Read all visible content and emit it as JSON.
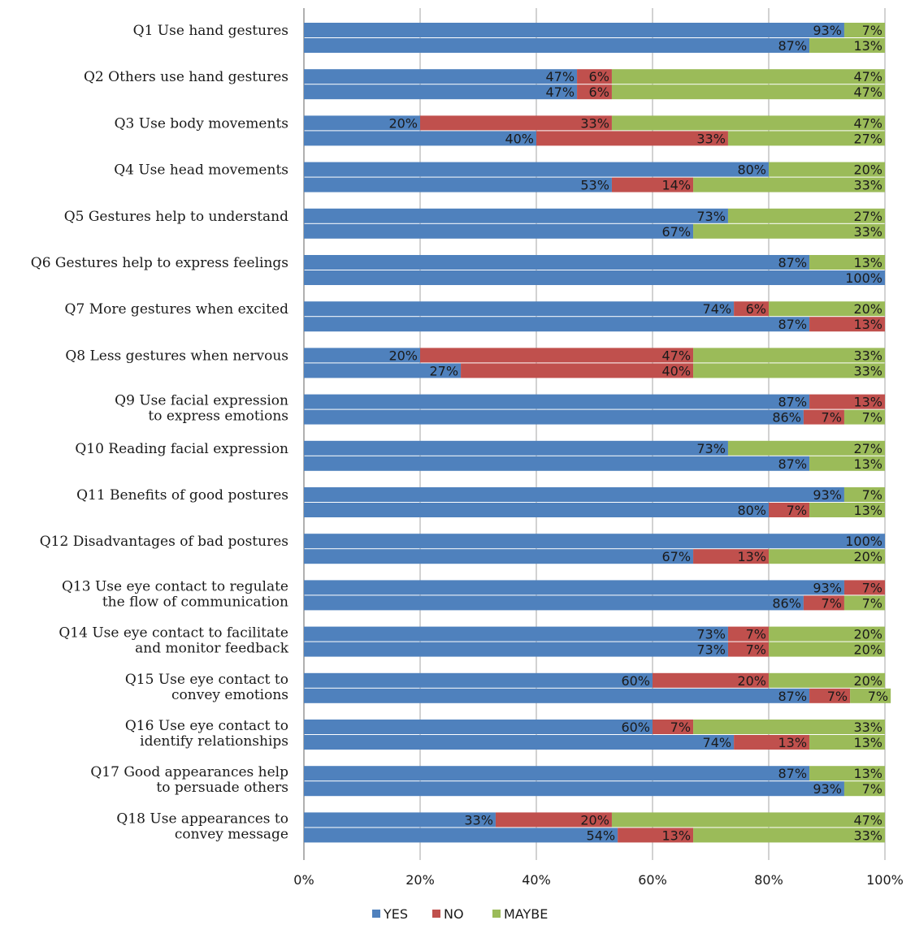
{
  "chart_data": {
    "type": "bar",
    "orientation": "horizontal",
    "stacked": true,
    "percent_stacked": true,
    "xlim": [
      0,
      100
    ],
    "x_ticks": [
      "0%",
      "20%",
      "40%",
      "60%",
      "80%",
      "100%"
    ],
    "grid": true,
    "legend_position": "bottom",
    "series": [
      {
        "name": "YES",
        "color": "#4f81bd"
      },
      {
        "name": "NO",
        "color": "#c0504d"
      },
      {
        "name": "MAYBE",
        "color": "#9bbb59"
      }
    ],
    "categories": [
      {
        "label": [
          "Q1 Use hand gestures"
        ],
        "bars": [
          [
            93,
            0,
            7
          ],
          [
            87,
            0,
            13
          ]
        ]
      },
      {
        "label": [
          "Q2 Others use hand gestures"
        ],
        "bars": [
          [
            47,
            6,
            47
          ],
          [
            47,
            6,
            47
          ]
        ]
      },
      {
        "label": [
          "Q3 Use body movements"
        ],
        "bars": [
          [
            20,
            33,
            47
          ],
          [
            40,
            33,
            27
          ]
        ]
      },
      {
        "label": [
          "Q4 Use head movements"
        ],
        "bars": [
          [
            80,
            0,
            20
          ],
          [
            53,
            14,
            33
          ]
        ]
      },
      {
        "label": [
          "Q5 Gestures help to understand"
        ],
        "bars": [
          [
            73,
            0,
            27
          ],
          [
            67,
            0,
            33
          ]
        ]
      },
      {
        "label": [
          "Q6 Gestures help to express feelings"
        ],
        "bars": [
          [
            87,
            0,
            13
          ],
          [
            100,
            0,
            0
          ]
        ]
      },
      {
        "label": [
          "Q7 More gestures when excited"
        ],
        "bars": [
          [
            74,
            6,
            20
          ],
          [
            87,
            13,
            0
          ]
        ]
      },
      {
        "label": [
          "Q8 Less gestures when nervous"
        ],
        "bars": [
          [
            20,
            47,
            33
          ],
          [
            27,
            40,
            33
          ]
        ]
      },
      {
        "label": [
          "Q9 Use facial expression",
          "to express emotions"
        ],
        "bars": [
          [
            87,
            13,
            0
          ],
          [
            86,
            7,
            7
          ]
        ]
      },
      {
        "label": [
          "Q10 Reading facial expression"
        ],
        "bars": [
          [
            73,
            0,
            27
          ],
          [
            87,
            0,
            13
          ]
        ]
      },
      {
        "label": [
          "Q11 Benefits of good postures"
        ],
        "bars": [
          [
            93,
            0,
            7
          ],
          [
            80,
            7,
            13
          ]
        ]
      },
      {
        "label": [
          "Q12 Disadvantages of bad postures"
        ],
        "bars": [
          [
            100,
            0,
            0
          ],
          [
            67,
            13,
            20
          ]
        ]
      },
      {
        "label": [
          "Q13 Use eye contact to regulate",
          "the flow of communication"
        ],
        "bars": [
          [
            93,
            7,
            0
          ],
          [
            86,
            7,
            7
          ]
        ]
      },
      {
        "label": [
          "Q14 Use eye contact to facilitate",
          "and monitor feedback"
        ],
        "bars": [
          [
            73,
            7,
            20
          ],
          [
            73,
            7,
            20
          ]
        ]
      },
      {
        "label": [
          "Q15 Use eye contact to",
          "convey emotions"
        ],
        "bars": [
          [
            60,
            20,
            20
          ],
          [
            87,
            7,
            7
          ]
        ]
      },
      {
        "label": [
          "Q16 Use eye contact to",
          "identify relationships"
        ],
        "bars": [
          [
            60,
            7,
            33
          ],
          [
            74,
            13,
            13
          ]
        ]
      },
      {
        "label": [
          "Q17 Good appearances help",
          "to persuade others"
        ],
        "bars": [
          [
            87,
            0,
            13
          ],
          [
            93,
            0,
            7
          ]
        ]
      },
      {
        "label": [
          "Q18 Use appearances to",
          "convey message"
        ],
        "bars": [
          [
            33,
            20,
            47
          ],
          [
            54,
            13,
            33
          ]
        ]
      }
    ]
  }
}
